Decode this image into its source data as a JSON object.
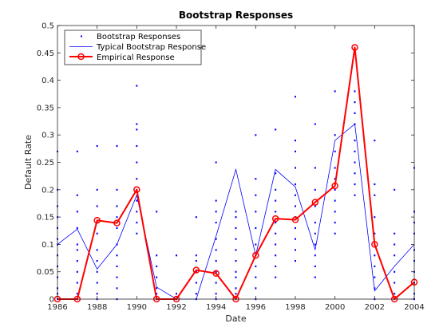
{
  "chart_data": {
    "type": "line",
    "title": "Bootstrap Responses",
    "xlabel": "Date",
    "ylabel": "Default Rate",
    "xlim": [
      1986,
      2004
    ],
    "ylim": [
      0,
      0.5
    ],
    "x_ticks": [
      "1986",
      "1988",
      "1990",
      "1992",
      "1994",
      "1996",
      "1998",
      "2000",
      "2002",
      "2004"
    ],
    "y_ticks": [
      "0",
      "0.05",
      "0.1",
      "0.15",
      "0.2",
      "0.25",
      "0.3",
      "0.35",
      "0.4",
      "0.45",
      "0.5"
    ],
    "grid": false,
    "legend_position": "top-left",
    "x": [
      1986,
      1987,
      1988,
      1989,
      1990,
      1991,
      1992,
      1993,
      1994,
      1995,
      1996,
      1997,
      1998,
      1999,
      2000,
      2001,
      2002,
      2003,
      2004
    ],
    "series": [
      {
        "name": "Bootstrap Responses",
        "style": "dots",
        "color": "#0000ff",
        "values": [
          [
            0.0,
            0.01,
            0.02,
            0.04,
            0.06,
            0.08,
            0.1,
            0.11,
            0.13,
            0.15,
            0.17,
            0.2,
            0.27
          ],
          [
            0.0,
            0.01,
            0.03,
            0.05,
            0.07,
            0.09,
            0.1,
            0.13,
            0.16,
            0.19,
            0.27
          ],
          [
            0.0,
            0.01,
            0.03,
            0.05,
            0.07,
            0.09,
            0.12,
            0.14,
            0.17,
            0.2,
            0.28
          ],
          [
            0.0,
            0.02,
            0.04,
            0.06,
            0.08,
            0.1,
            0.13,
            0.15,
            0.17,
            0.2,
            0.28
          ],
          [
            0.12,
            0.14,
            0.16,
            0.18,
            0.2,
            0.22,
            0.25,
            0.28,
            0.31,
            0.32,
            0.39
          ],
          [
            0.0,
            0.01,
            0.02,
            0.04,
            0.06,
            0.08,
            0.16
          ],
          [
            0.0,
            0.01,
            0.08
          ],
          [
            0.0,
            0.01,
            0.03,
            0.05,
            0.07,
            0.08,
            0.15
          ],
          [
            0.0,
            0.01,
            0.03,
            0.05,
            0.07,
            0.09,
            0.11,
            0.14,
            0.16,
            0.18,
            0.25
          ],
          [
            0.0,
            0.01,
            0.02,
            0.04,
            0.05,
            0.07,
            0.09,
            0.11,
            0.13,
            0.15,
            0.16
          ],
          [
            0.0,
            0.02,
            0.04,
            0.06,
            0.08,
            0.1,
            0.13,
            0.16,
            0.19,
            0.22,
            0.3
          ],
          [
            0.04,
            0.06,
            0.08,
            0.1,
            0.12,
            0.14,
            0.16,
            0.18,
            0.2,
            0.23,
            0.31
          ],
          [
            0.07,
            0.09,
            0.11,
            0.13,
            0.15,
            0.17,
            0.19,
            0.21,
            0.24,
            0.27,
            0.29,
            0.37
          ],
          [
            0.04,
            0.06,
            0.08,
            0.1,
            0.12,
            0.14,
            0.17,
            0.2,
            0.24,
            0.32
          ],
          [
            0.12,
            0.14,
            0.16,
            0.18,
            0.2,
            0.22,
            0.24,
            0.27,
            0.3,
            0.38
          ],
          [
            0.19,
            0.21,
            0.23,
            0.25,
            0.27,
            0.29,
            0.32,
            0.34,
            0.36,
            0.38
          ],
          [
            0.0,
            0.02,
            0.04,
            0.06,
            0.08,
            0.1,
            0.12,
            0.15,
            0.19,
            0.21,
            0.29
          ],
          [
            0.0,
            0.01,
            0.03,
            0.05,
            0.08,
            0.1,
            0.12,
            0.2
          ],
          [
            0.0,
            0.01,
            0.03,
            0.05,
            0.07,
            0.09,
            0.12,
            0.14,
            0.16,
            0.24
          ]
        ]
      },
      {
        "name": "Typical Bootstrap Response",
        "style": "line",
        "color": "#0000ff",
        "values": [
          0.1,
          0.128,
          0.055,
          0.1,
          0.19,
          0.022,
          0.0,
          0.0,
          0.115,
          0.237,
          0.08,
          0.237,
          0.205,
          0.09,
          0.29,
          0.32,
          0.015,
          0.06,
          0.1
        ]
      },
      {
        "name": "Empirical Response",
        "style": "line-circles",
        "color": "#ff0000",
        "values": [
          0.0,
          0.0,
          0.144,
          0.139,
          0.2,
          0.0,
          0.0,
          0.053,
          0.047,
          0.0,
          0.08,
          0.147,
          0.145,
          0.177,
          0.207,
          0.46,
          0.1,
          0.0,
          0.031
        ]
      }
    ]
  }
}
